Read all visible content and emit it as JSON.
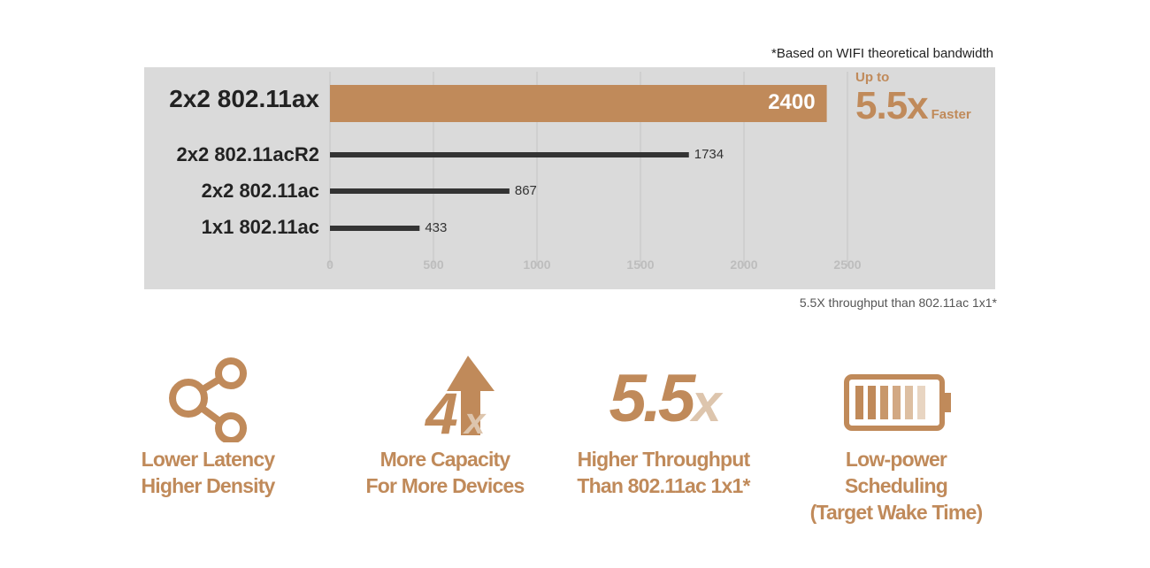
{
  "notes": {
    "top": "*Based on WIFI theoretical bandwidth",
    "bottom": "5.5X throughput than 802.11ac 1x1*"
  },
  "callout": {
    "prefix": "Up to",
    "big": "5.5x",
    "suffix": "Faster"
  },
  "colors": {
    "accent": "#c08a5a",
    "bar": "#333333",
    "panel": "#dadada",
    "grid": "#c4c4c4",
    "x_faded": "#ddc5ad"
  },
  "chart_data": {
    "type": "bar",
    "orientation": "horizontal",
    "categories": [
      "2x2 802.11ax",
      "2x2 802.11acR2",
      "2x2 802.11ac",
      "1x1 802.11ac"
    ],
    "values": [
      2400,
      1734,
      867,
      433
    ],
    "value_labels": [
      "2400",
      "1734",
      "867",
      "433"
    ],
    "highlight_index": 0,
    "xlim": [
      0,
      2500
    ],
    "x_ticks": [
      "0",
      "500",
      "1000",
      "1500",
      "2000",
      "2500"
    ],
    "grid": true
  },
  "features": [
    {
      "icon": "share-nodes-icon",
      "line1": "Lower Latency",
      "line2": "Higher Density"
    },
    {
      "icon": "4x-arrow-up-icon",
      "glyph_num": "4",
      "glyph_x": "x",
      "line1": "More Capacity",
      "line2": "For More Devices"
    },
    {
      "icon": "5-5x-icon",
      "glyph_num": "5.5",
      "glyph_x": "x",
      "line1": "Higher Throughput",
      "line2": "Than 802.11ac 1x1*"
    },
    {
      "icon": "battery-icon",
      "line1": "Low-power Scheduling",
      "line2": "(Target Wake Time)"
    }
  ]
}
